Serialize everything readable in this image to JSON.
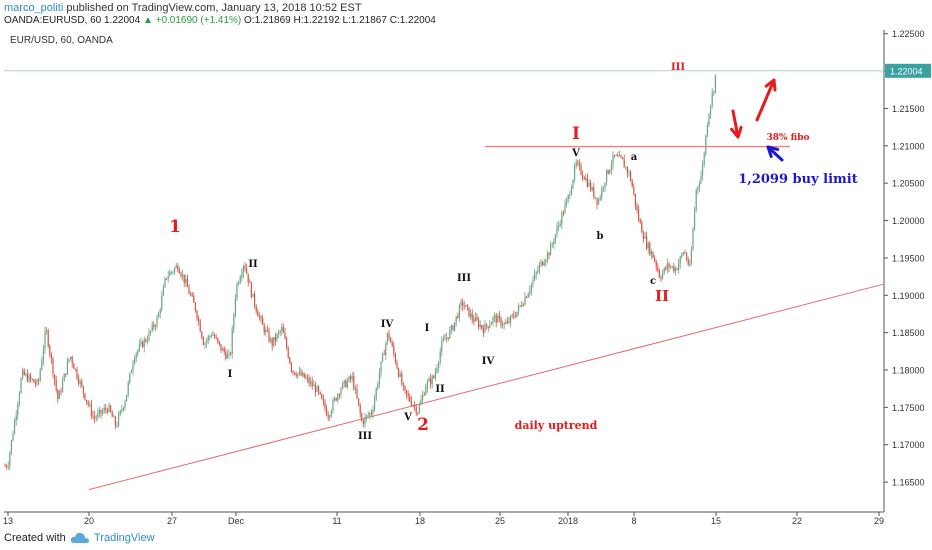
{
  "header": {
    "user": "marco_politi",
    "published_text": "published on TradingView.com, January 13, 2018 10:52 EST",
    "symbol_line": "OANDA:EURUSD, 60  1.22004",
    "change": "▲ +0.01690 (+1.41%)",
    "ohlc": "O:1.21869 H:1.22192 L:1.21867 C:1.22004"
  },
  "footer": {
    "created_with": "Created with",
    "brand": "TradingView"
  },
  "chart_data": {
    "type": "candlestick",
    "title": "EUR/USD, 60, OANDA",
    "last_price": "1.22004",
    "ylim": [
      1.161,
      1.2255
    ],
    "y_ticks": [
      "1.16500",
      "1.17000",
      "1.17500",
      "1.18000",
      "1.18500",
      "1.19000",
      "1.19500",
      "1.20000",
      "1.20500",
      "1.21000",
      "1.21500",
      "1.22000",
      "1.22500"
    ],
    "x_ticks": [
      "13",
      "20",
      "27",
      "Dec",
      "11",
      "18",
      "25",
      "2018",
      "8",
      "15",
      "22",
      "29"
    ],
    "colors": {
      "up": "#6ba583",
      "down": "#d75442",
      "annotation_red": "#e8191b",
      "annotation_blue": "#1c17d4",
      "level_line": "#f08080",
      "last_price_line": "#a8d8d8"
    },
    "price_path": [
      [
        0,
        1.1665
      ],
      [
        8,
        1.1675
      ],
      [
        22,
        1.1795
      ],
      [
        38,
        1.178
      ],
      [
        46,
        1.1855
      ],
      [
        58,
        1.176
      ],
      [
        70,
        1.182
      ],
      [
        82,
        1.1775
      ],
      [
        94,
        1.1735
      ],
      [
        108,
        1.175
      ],
      [
        116,
        1.1725
      ],
      [
        126,
        1.1765
      ],
      [
        134,
        1.182
      ],
      [
        148,
        1.1845
      ],
      [
        158,
        1.187
      ],
      [
        166,
        1.1925
      ],
      [
        178,
        1.194
      ],
      [
        186,
        1.1915
      ],
      [
        196,
        1.188
      ],
      [
        204,
        1.1835
      ],
      [
        212,
        1.185
      ],
      [
        220,
        1.183
      ],
      [
        230,
        1.1815
      ],
      [
        236,
        1.191
      ],
      [
        244,
        1.1945
      ],
      [
        252,
        1.19
      ],
      [
        262,
        1.186
      ],
      [
        272,
        1.1835
      ],
      [
        282,
        1.1855
      ],
      [
        292,
        1.18
      ],
      [
        304,
        1.179
      ],
      [
        316,
        1.1775
      ],
      [
        328,
        1.174
      ],
      [
        340,
        1.1775
      ],
      [
        352,
        1.179
      ],
      [
        362,
        1.173
      ],
      [
        372,
        1.1745
      ],
      [
        380,
        1.18
      ],
      [
        388,
        1.185
      ],
      [
        396,
        1.181
      ],
      [
        404,
        1.177
      ],
      [
        410,
        1.176
      ],
      [
        418,
        1.1745
      ],
      [
        426,
        1.178
      ],
      [
        434,
        1.179
      ],
      [
        442,
        1.1835
      ],
      [
        452,
        1.1855
      ],
      [
        462,
        1.189
      ],
      [
        472,
        1.187
      ],
      [
        484,
        1.1855
      ],
      [
        494,
        1.187
      ],
      [
        506,
        1.186
      ],
      [
        518,
        1.188
      ],
      [
        528,
        1.1905
      ],
      [
        540,
        1.194
      ],
      [
        550,
        1.196
      ],
      [
        560,
        1.2
      ],
      [
        568,
        1.203
      ],
      [
        576,
        1.2075
      ],
      [
        584,
        1.206
      ],
      [
        592,
        1.204
      ],
      [
        598,
        1.2025
      ],
      [
        606,
        1.206
      ],
      [
        614,
        1.2085
      ],
      [
        622,
        1.208
      ],
      [
        630,
        1.206
      ],
      [
        638,
        1.2005
      ],
      [
        646,
        1.197
      ],
      [
        654,
        1.195
      ],
      [
        660,
        1.1925
      ],
      [
        668,
        1.194
      ],
      [
        676,
        1.1935
      ],
      [
        684,
        1.196
      ],
      [
        690,
        1.1935
      ],
      [
        696,
        1.204
      ],
      [
        702,
        1.2065
      ],
      [
        708,
        1.214
      ],
      [
        714,
        1.218
      ],
      [
        716,
        1.22
      ]
    ],
    "trend_line": {
      "label": "daily uptrend",
      "from": [
        "20",
        1.164
      ],
      "to": [
        "29",
        1.1915
      ]
    },
    "horizontal_level": {
      "value": 1.2099,
      "label": "I"
    },
    "annotations": [
      {
        "text": "1",
        "color": "red",
        "size": "large"
      },
      {
        "text": "2",
        "color": "red",
        "size": "large"
      },
      {
        "text": "I",
        "color": "red",
        "size": "large"
      },
      {
        "text": "II",
        "color": "red",
        "size": "large"
      },
      {
        "text": "III",
        "color": "red",
        "size": "small"
      },
      {
        "text": "II",
        "color": "black"
      },
      {
        "text": "I",
        "color": "black"
      },
      {
        "text": "IV",
        "color": "black"
      },
      {
        "text": "I",
        "color": "black"
      },
      {
        "text": "III",
        "color": "black"
      },
      {
        "text": "III",
        "color": "black"
      },
      {
        "text": "V",
        "color": "black"
      },
      {
        "text": "II",
        "color": "black"
      },
      {
        "text": "IV",
        "color": "black"
      },
      {
        "text": "V",
        "color": "black"
      },
      {
        "text": "a",
        "color": "black"
      },
      {
        "text": "b",
        "color": "black"
      },
      {
        "text": "c",
        "color": "black"
      },
      {
        "text": "38% fibo",
        "color": "red"
      },
      {
        "text": "1,2099 buy limit",
        "color": "blue"
      },
      {
        "text": "daily uptrend",
        "color": "red"
      }
    ]
  }
}
